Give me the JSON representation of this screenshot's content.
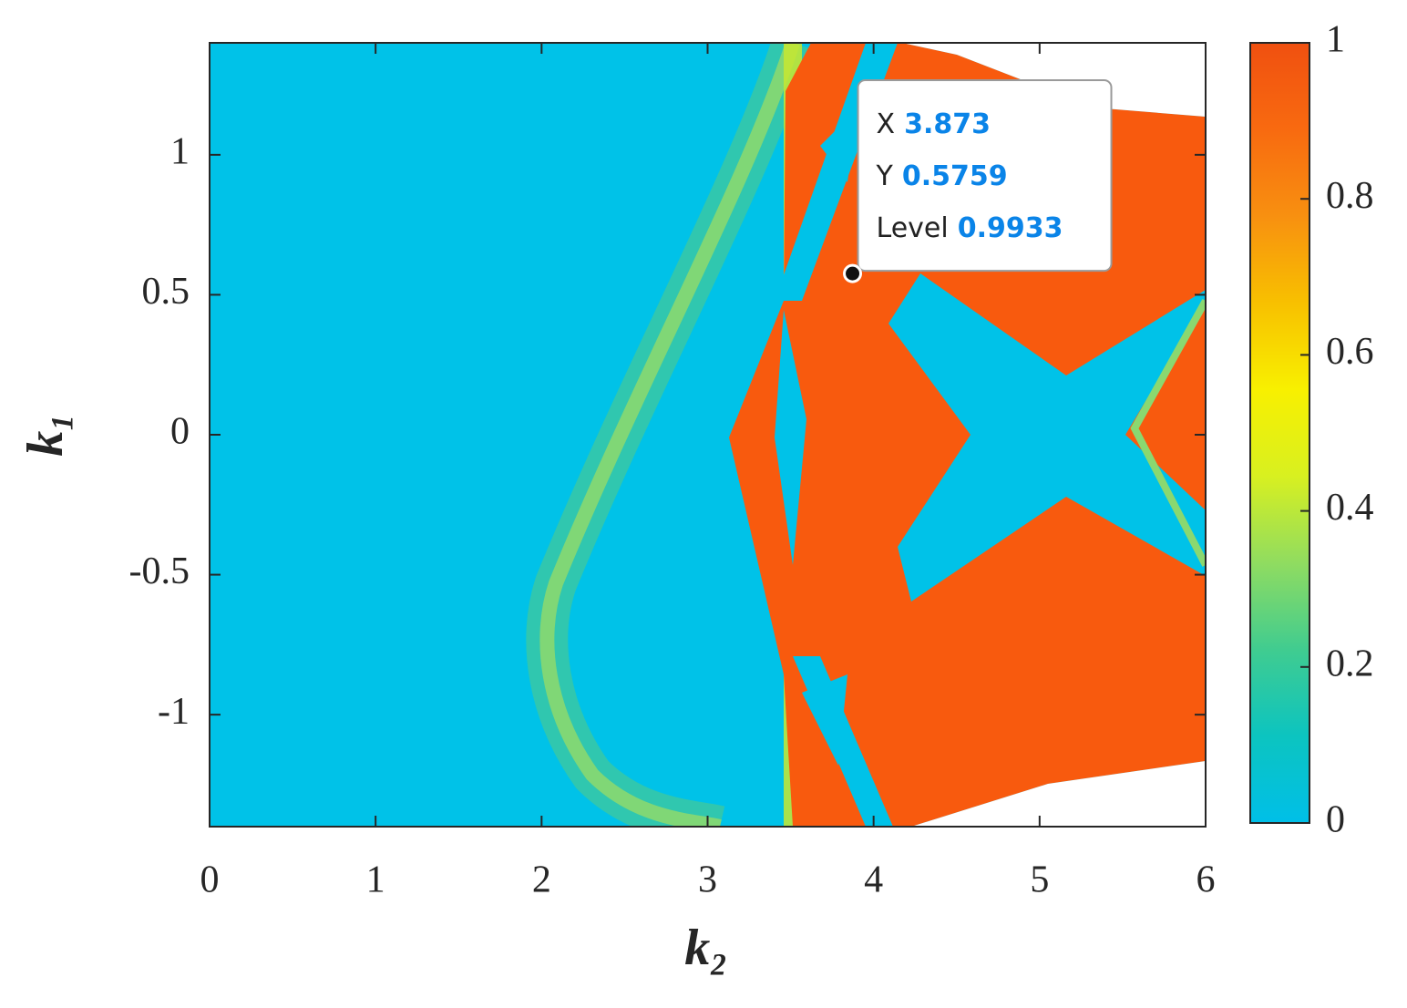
{
  "chart_data": {
    "type": "contour",
    "xlabel": "k₂",
    "ylabel": "k₁",
    "xlim": [
      0,
      6
    ],
    "xticks": [
      0,
      1,
      2,
      3,
      4,
      5,
      6
    ],
    "ylim": [
      -1.4,
      1.4
    ],
    "yticks": [
      -1,
      -0.5,
      0,
      0.5,
      1
    ],
    "clim": [
      0,
      1
    ],
    "cticks": [
      0,
      0.2,
      0.4,
      0.6,
      0.8,
      1
    ],
    "colormap": [
      "#00bfe8",
      "#0cc4c0",
      "#40cc90",
      "#90dc60",
      "#d8f020",
      "#f8f000",
      "#f8c000",
      "#f89010",
      "#f86a10",
      "#f05010"
    ],
    "datatip": {
      "x": 3.873,
      "y": 0.5759,
      "level": 0.9933,
      "labels": [
        "X",
        "Y",
        "Level"
      ]
    }
  }
}
